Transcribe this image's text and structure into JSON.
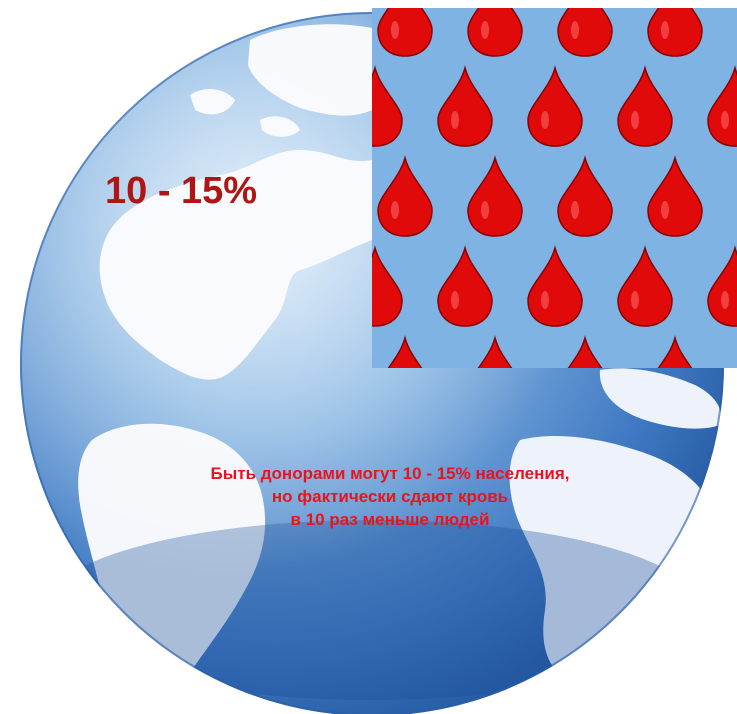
{
  "headline": {
    "percent_range": "10 - 15%"
  },
  "caption": {
    "lines": [
      "Быть донорами могут 10 - 15% населения,",
      "но фактически сдают кровь",
      "в 10 раз меньше людей"
    ]
  },
  "colors": {
    "globe_ocean": "#4a86cc",
    "globe_ocean_light": "#9cc4ea",
    "continents": "#f4f6fb",
    "panel_background": "#7eb3e3",
    "drop_fill": "#e10a0a",
    "drop_dark": "#8c0000",
    "headline_text": "#b01515",
    "caption_text": "#e8141c"
  },
  "icons": {
    "drops": "blood-drop-icon",
    "globe": "globe-icon"
  }
}
